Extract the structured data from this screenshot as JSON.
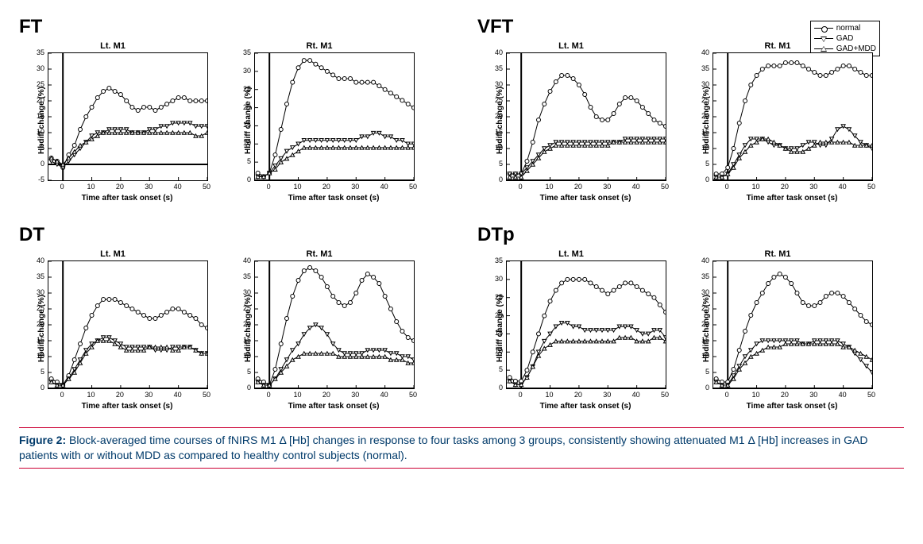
{
  "figure": {
    "caption_ref": "Figure 2:",
    "caption_text": "Block-averaged time courses of fNIRS M1 Δ [Hb] changes in response to four tasks among 3 groups, consistently showing attenuated M1 Δ [Hb] increases in GAD patients with or without MDD as compared to healthy control subjects (normal).",
    "caption_color": "#003a6a",
    "rule_color": "#cc0033",
    "background_color": "#ffffff",
    "xlabel": "Time after task onset (s)",
    "ylabel": "Hbdiff change (%)",
    "line_color": "#000000",
    "line_width": 1,
    "marker_fill": "#ffffff",
    "marker_size": 5,
    "title_fontsize": 11,
    "label_fontsize": 10,
    "tick_fontsize": 9,
    "task_label_fontsize": 24,
    "legend": {
      "items": [
        {
          "label": "normal",
          "marker": "circle"
        },
        {
          "label": "GAD",
          "marker": "triangle-down"
        },
        {
          "label": "GAD+MDD",
          "marker": "triangle-up"
        }
      ],
      "border_color": "#000000",
      "fontsize": 10
    },
    "x": [
      -4,
      -2,
      0,
      2,
      4,
      6,
      8,
      10,
      12,
      14,
      16,
      18,
      20,
      22,
      24,
      26,
      28,
      30,
      32,
      34,
      36,
      38,
      40,
      42,
      44,
      46,
      48,
      50
    ],
    "tasks": [
      {
        "id": "FT",
        "label": "FT",
        "panels": [
          {
            "title": "Lt. M1",
            "xlim": [
              -5,
              50
            ],
            "xtick_step": 10,
            "ylim": [
              -5,
              35
            ],
            "ytick_step": 5,
            "series": {
              "normal": [
                2,
                1,
                -1,
                3,
                6,
                11,
                15,
                18,
                21,
                23,
                24,
                23,
                22,
                20,
                18,
                17,
                18,
                18,
                17,
                18,
                19,
                20,
                21,
                21,
                20,
                20,
                20,
                20
              ],
              "gad": [
                1,
                0,
                -1,
                1,
                3,
                5,
                7,
                9,
                10,
                10,
                11,
                11,
                11,
                11,
                10,
                10,
                10,
                11,
                11,
                12,
                12,
                13,
                13,
                13,
                13,
                12,
                12,
                12
              ],
              "gadmdd": [
                2,
                1,
                0,
                2,
                4,
                6,
                7,
                8,
                9,
                10,
                10,
                10,
                10,
                10,
                10,
                10,
                10,
                10,
                10,
                10,
                10,
                10,
                10,
                10,
                10,
                9,
                9,
                10
              ]
            }
          },
          {
            "title": "Rt. M1",
            "xlim": [
              -5,
              50
            ],
            "xtick_step": 10,
            "ylim": [
              0,
              35
            ],
            "ytick_step": 5,
            "series": {
              "normal": [
                2,
                1,
                2,
                7,
                14,
                21,
                27,
                31,
                33,
                33,
                32,
                31,
                30,
                29,
                28,
                28,
                28,
                27,
                27,
                27,
                27,
                26,
                25,
                24,
                23,
                22,
                21,
                20
              ],
              "gad": [
                1,
                1,
                2,
                4,
                6,
                8,
                9,
                10,
                11,
                11,
                11,
                11,
                11,
                11,
                11,
                11,
                11,
                11,
                12,
                12,
                13,
                13,
                12,
                12,
                11,
                11,
                10,
                10
              ],
              "gadmdd": [
                1,
                1,
                2,
                3,
                5,
                6,
                7,
                8,
                9,
                9,
                9,
                9,
                9,
                9,
                9,
                9,
                9,
                9,
                9,
                9,
                9,
                9,
                9,
                9,
                9,
                9,
                9,
                9
              ]
            }
          }
        ]
      },
      {
        "id": "VFT",
        "label": "VFT",
        "panels": [
          {
            "title": "Lt. M1",
            "xlim": [
              -5,
              50
            ],
            "xtick_step": 10,
            "ylim": [
              0,
              40
            ],
            "ytick_step": 5,
            "series": {
              "normal": [
                2,
                2,
                2,
                6,
                12,
                19,
                24,
                28,
                31,
                33,
                33,
                32,
                30,
                27,
                23,
                20,
                19,
                19,
                21,
                24,
                26,
                26,
                25,
                23,
                21,
                19,
                18,
                17
              ],
              "gad": [
                2,
                2,
                2,
                4,
                6,
                8,
                10,
                11,
                12,
                12,
                12,
                12,
                12,
                12,
                12,
                12,
                12,
                12,
                12,
                12,
                13,
                13,
                13,
                13,
                13,
                13,
                13,
                13
              ],
              "gadmdd": [
                1,
                1,
                1,
                3,
                5,
                7,
                9,
                10,
                11,
                11,
                11,
                11,
                11,
                11,
                11,
                11,
                11,
                11,
                12,
                12,
                12,
                12,
                12,
                12,
                12,
                12,
                12,
                12
              ]
            }
          },
          {
            "title": "Rt. M1",
            "xlim": [
              -5,
              50
            ],
            "xtick_step": 10,
            "ylim": [
              0,
              40
            ],
            "ytick_step": 5,
            "series": {
              "normal": [
                2,
                2,
                4,
                10,
                18,
                25,
                30,
                33,
                35,
                36,
                36,
                36,
                37,
                37,
                37,
                36,
                35,
                34,
                33,
                33,
                34,
                35,
                36,
                36,
                35,
                34,
                33,
                33
              ],
              "gad": [
                1,
                1,
                2,
                5,
                8,
                11,
                13,
                13,
                13,
                12,
                11,
                11,
                10,
                10,
                10,
                11,
                12,
                12,
                11,
                11,
                13,
                16,
                17,
                16,
                14,
                12,
                11,
                10
              ],
              "gadmdd": [
                1,
                1,
                2,
                4,
                7,
                9,
                11,
                12,
                13,
                13,
                12,
                11,
                10,
                9,
                9,
                9,
                10,
                11,
                12,
                12,
                12,
                12,
                12,
                12,
                11,
                11,
                11,
                11
              ]
            }
          }
        ]
      },
      {
        "id": "DT",
        "label": "DT",
        "panels": [
          {
            "title": "Lt. M1",
            "xlim": [
              -5,
              50
            ],
            "xtick_step": 10,
            "ylim": [
              0,
              40
            ],
            "ytick_step": 5,
            "series": {
              "normal": [
                3,
                2,
                1,
                4,
                9,
                14,
                19,
                23,
                26,
                28,
                28,
                28,
                27,
                26,
                25,
                24,
                23,
                22,
                22,
                23,
                24,
                25,
                25,
                24,
                23,
                22,
                20,
                19
              ],
              "gad": [
                2,
                1,
                1,
                3,
                6,
                9,
                12,
                14,
                15,
                16,
                16,
                15,
                14,
                13,
                13,
                13,
                13,
                13,
                12,
                12,
                12,
                13,
                13,
                13,
                13,
                12,
                11,
                11
              ],
              "gadmdd": [
                2,
                1,
                1,
                3,
                5,
                8,
                11,
                13,
                15,
                15,
                15,
                14,
                13,
                12,
                12,
                12,
                12,
                13,
                13,
                13,
                13,
                12,
                12,
                13,
                13,
                12,
                11,
                11
              ]
            }
          },
          {
            "title": "Rt. M1",
            "xlim": [
              -5,
              50
            ],
            "xtick_step": 10,
            "ylim": [
              0,
              40
            ],
            "ytick_step": 5,
            "series": {
              "normal": [
                3,
                2,
                1,
                6,
                14,
                22,
                29,
                34,
                37,
                38,
                37,
                35,
                32,
                29,
                27,
                26,
                27,
                30,
                34,
                36,
                35,
                33,
                29,
                25,
                21,
                18,
                16,
                15
              ],
              "gad": [
                2,
                1,
                1,
                3,
                6,
                9,
                12,
                14,
                17,
                19,
                20,
                19,
                17,
                14,
                12,
                11,
                11,
                11,
                11,
                12,
                12,
                12,
                12,
                11,
                11,
                10,
                10,
                9
              ],
              "gadmdd": [
                2,
                1,
                1,
                3,
                5,
                7,
                9,
                10,
                11,
                11,
                11,
                11,
                11,
                11,
                10,
                10,
                10,
                10,
                10,
                10,
                10,
                10,
                10,
                9,
                9,
                9,
                8,
                8
              ]
            }
          }
        ]
      },
      {
        "id": "DTp",
        "label": "DTp",
        "panels": [
          {
            "title": "Lt. M1",
            "xlim": [
              -5,
              50
            ],
            "xtick_step": 10,
            "ylim": [
              0,
              35
            ],
            "ytick_step": 5,
            "series": {
              "normal": [
                3,
                2,
                2,
                5,
                10,
                15,
                20,
                24,
                27,
                29,
                30,
                30,
                30,
                30,
                29,
                28,
                27,
                26,
                27,
                28,
                29,
                29,
                28,
                27,
                26,
                25,
                23,
                21
              ],
              "gad": [
                2,
                1,
                1,
                3,
                6,
                10,
                13,
                15,
                17,
                18,
                18,
                17,
                17,
                16,
                16,
                16,
                16,
                16,
                16,
                17,
                17,
                17,
                16,
                15,
                15,
                16,
                16,
                14
              ],
              "gadmdd": [
                2,
                1,
                1,
                3,
                6,
                9,
                11,
                12,
                13,
                13,
                13,
                13,
                13,
                13,
                13,
                13,
                13,
                13,
                13,
                14,
                14,
                14,
                13,
                13,
                13,
                14,
                14,
                13
              ]
            }
          },
          {
            "title": "Rt. M1",
            "xlim": [
              -5,
              50
            ],
            "xtick_step": 10,
            "ylim": [
              0,
              40
            ],
            "ytick_step": 5,
            "series": {
              "normal": [
                3,
                2,
                2,
                6,
                12,
                18,
                23,
                27,
                30,
                33,
                35,
                36,
                35,
                33,
                30,
                27,
                26,
                26,
                27,
                29,
                30,
                30,
                29,
                27,
                25,
                23,
                21,
                20
              ],
              "gad": [
                2,
                1,
                1,
                4,
                7,
                10,
                12,
                14,
                15,
                15,
                15,
                15,
                15,
                15,
                15,
                14,
                14,
                15,
                15,
                15,
                15,
                15,
                14,
                13,
                11,
                9,
                7,
                5
              ],
              "gadmdd": [
                2,
                1,
                1,
                3,
                6,
                8,
                10,
                11,
                12,
                13,
                13,
                13,
                14,
                14,
                14,
                14,
                14,
                14,
                14,
                14,
                14,
                14,
                13,
                13,
                12,
                11,
                10,
                9
              ]
            }
          }
        ]
      }
    ]
  }
}
